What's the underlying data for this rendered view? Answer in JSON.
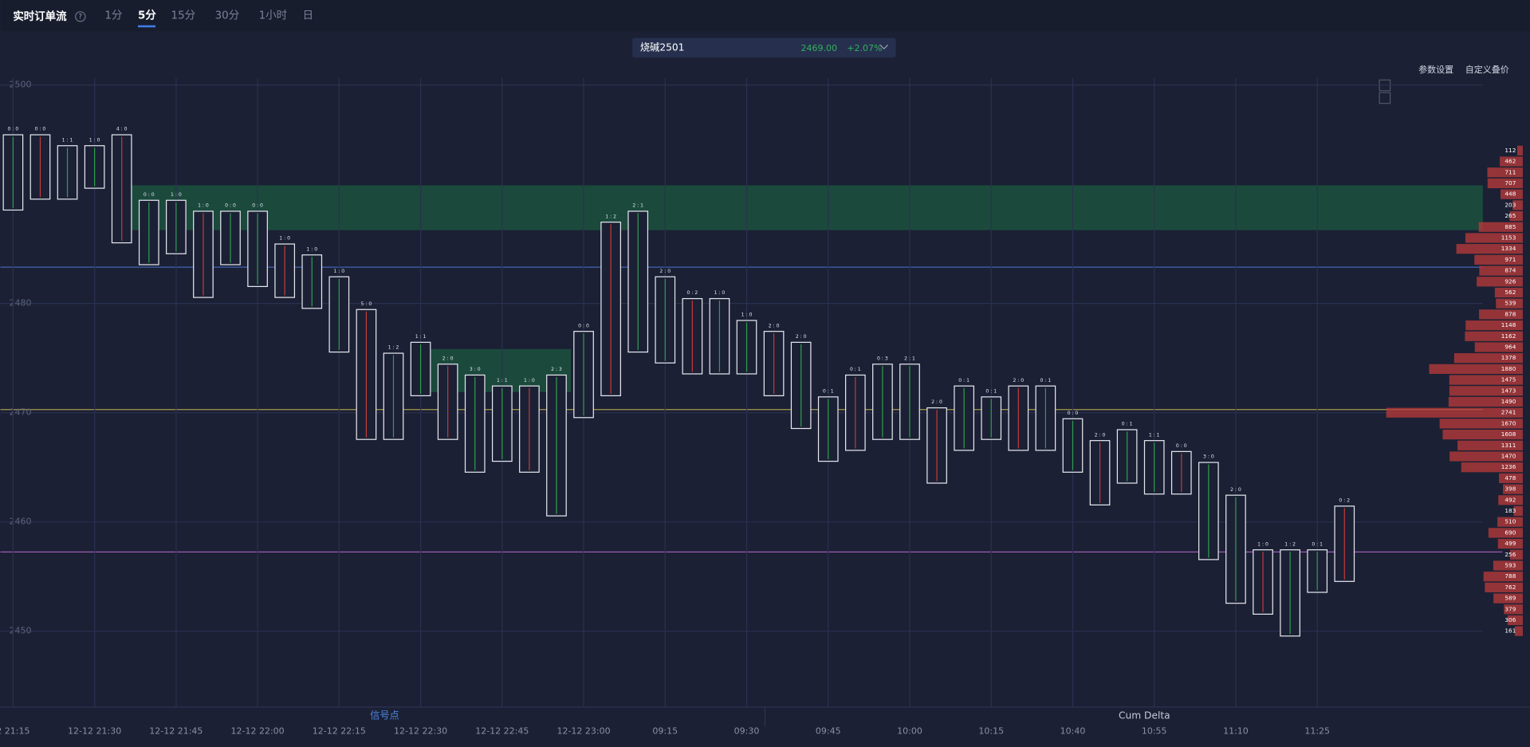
{
  "header": {
    "title": "实时订单流",
    "help": "?",
    "tabs": [
      "1分",
      "5分",
      "15分",
      "30分",
      "1小时",
      "日"
    ],
    "symbol": "烧碱2501",
    "price": "2469.00",
    "change": "+2.07%",
    "settings": "参数设置",
    "custom": "自定义叠价"
  },
  "panels": [
    "信号点",
    "Cum Delta"
  ],
  "chart_data": {
    "type": "footprint",
    "categories": [
      "2 21:15",
      null,
      null,
      "12-12 21:30",
      null,
      null,
      "12-12 21:45",
      null,
      null,
      "12-12 22:00",
      null,
      null,
      "12-12 22:15",
      null,
      null,
      "12-12 22:30",
      null,
      null,
      "12-12 22:45",
      null,
      null,
      "12-12 23:00",
      null,
      null,
      "09:15",
      null,
      null,
      "09:30",
      null,
      null,
      "09:45",
      null,
      null,
      "10:00",
      null,
      null,
      "10:15",
      null,
      null,
      "10:40",
      null,
      null,
      "10:55",
      null,
      null,
      "11:10",
      null,
      null,
      "11:25",
      null
    ],
    "ratios": [
      "0 : 0",
      "0 : 0",
      "1 : 1",
      "1 : 0",
      "4 : 0",
      "0 : 0",
      "1 : 0",
      "1 : 0",
      "0 : 0",
      "0 : 0",
      "1 : 0",
      "1 : 0",
      "1 : 0",
      "5 : 0",
      "1 : 2",
      "1 : 1",
      "2 : 0",
      "3 : 0",
      "1 : 1",
      "1 : 0",
      "2 : 3",
      "0 : 0",
      "1 : 2",
      "2 : 1",
      "2 : 0",
      "0 : 2",
      "1 : 0",
      "1 : 0",
      "2 : 0",
      "2 : 0",
      "0 : 1",
      "0 : 1",
      "0 : 3",
      "2 : 1",
      "2 : 0",
      "0 : 1",
      "0 : 1",
      "2 : 0",
      "0 : 1",
      "0 : 0",
      "2 : 0",
      "0 : 1",
      "1 : 1",
      "0 : 0",
      "3 : 0",
      "2 : 0",
      "1 : 0",
      "1 : 2",
      "0 : 1",
      "0 : 2"
    ],
    "series": [
      {
        "name": "high",
        "values": [
          2495,
          2495,
          2494,
          2494,
          2495,
          2489,
          2489,
          2488,
          2488,
          2488,
          2485,
          2484,
          2482,
          2479,
          2475,
          2476,
          2474,
          2473,
          2472,
          2472,
          2473,
          2477,
          2487,
          2488,
          2482,
          2480,
          2480,
          2478,
          2477,
          2476,
          2471,
          2473,
          2474,
          2474,
          2470,
          2472,
          2471,
          2472,
          2472,
          2469,
          2467,
          2468,
          2467,
          2466,
          2465,
          2462,
          2457,
          2457,
          2457,
          2461
        ]
      },
      {
        "name": "low",
        "values": [
          2489,
          2490,
          2490,
          2491,
          2486,
          2484,
          2485,
          2481,
          2484,
          2482,
          2481,
          2480,
          2476,
          2468,
          2468,
          2472,
          2468,
          2465,
          2466,
          2465,
          2461,
          2470,
          2472,
          2476,
          2475,
          2474,
          2474,
          2474,
          2472,
          2469,
          2466,
          2467,
          2468,
          2468,
          2464,
          2467,
          2468,
          2467,
          2467,
          2465,
          2462,
          2464,
          2463,
          2463,
          2457,
          2453,
          2452,
          2450,
          2454,
          2455
        ]
      }
    ],
    "ylim": [
      2444,
      2501
    ],
    "yticks": [
      2450,
      2460,
      2470,
      2480,
      2500
    ],
    "grid": true,
    "profile": {
      "levels": [
        2494,
        2493,
        2492,
        2491,
        2490,
        2489,
        2488,
        2487,
        2486,
        2485,
        2484,
        2483,
        2482,
        2481,
        2480,
        2479,
        2478,
        2477,
        2476,
        2475,
        2474,
        2473,
        2472,
        2471,
        2470,
        2469,
        2468,
        2467,
        2466,
        2465,
        2464,
        2463,
        2462,
        2461,
        2460,
        2459,
        2458,
        2457,
        2456,
        2455,
        2454,
        2453,
        2452,
        2451,
        2450
      ],
      "values": [
        112,
        462,
        711,
        707,
        448,
        203,
        265,
        885,
        1153,
        1334,
        971,
        874,
        926,
        562,
        539,
        878,
        1148,
        1162,
        964,
        1378,
        1880,
        1475,
        1473,
        1490,
        2741,
        1670,
        1608,
        1311,
        1470,
        1236,
        478,
        398,
        492,
        183,
        510,
        690,
        499,
        256,
        593,
        788,
        762,
        589,
        379,
        306,
        161
      ],
      "color": "#b3393a"
    }
  }
}
